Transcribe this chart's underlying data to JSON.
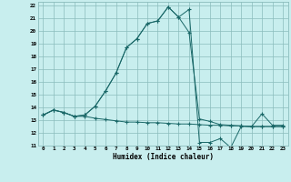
{
  "xlabel": "Humidex (Indice chaleur)",
  "bg_color": "#c8eeee",
  "grid_color": "#8bbcbc",
  "line_color": "#1a6868",
  "xlim": [
    -0.5,
    23.5
  ],
  "ylim": [
    11,
    22.3
  ],
  "xticks": [
    0,
    1,
    2,
    3,
    4,
    5,
    6,
    7,
    8,
    9,
    10,
    11,
    12,
    13,
    14,
    15,
    16,
    17,
    18,
    19,
    20,
    21,
    22,
    23
  ],
  "yticks": [
    11,
    12,
    13,
    14,
    15,
    16,
    17,
    18,
    19,
    20,
    21,
    22
  ],
  "line1_x": [
    0,
    1,
    2,
    3,
    4,
    5,
    6,
    7,
    8,
    9,
    10,
    11,
    12,
    13,
    14,
    15,
    16,
    17,
    18,
    19,
    20,
    21,
    22,
    23
  ],
  "line1_y": [
    13.4,
    13.8,
    13.6,
    13.3,
    13.3,
    13.15,
    13.05,
    12.95,
    12.85,
    12.85,
    12.8,
    12.8,
    12.75,
    12.7,
    12.7,
    12.65,
    12.6,
    12.6,
    12.55,
    12.55,
    12.5,
    12.5,
    12.5,
    12.5
  ],
  "line2_x": [
    0,
    1,
    2,
    3,
    4,
    5,
    6,
    7,
    8,
    9,
    10,
    11,
    12,
    13,
    14,
    15,
    16,
    17,
    18,
    19,
    20,
    21,
    22,
    23
  ],
  "line2_y": [
    13.4,
    13.8,
    13.6,
    13.3,
    13.4,
    14.1,
    15.3,
    16.7,
    18.7,
    19.4,
    20.6,
    20.8,
    21.9,
    21.1,
    21.7,
    11.25,
    11.25,
    11.55,
    10.85,
    12.5,
    12.5,
    13.5,
    12.6,
    12.6
  ],
  "line3_x": [
    0,
    1,
    2,
    3,
    4,
    5,
    6,
    7,
    8,
    9,
    10,
    11,
    12,
    13,
    14,
    15,
    16,
    17,
    18,
    19,
    20,
    21,
    22,
    23
  ],
  "line3_y": [
    13.4,
    13.8,
    13.6,
    13.3,
    13.4,
    14.1,
    15.3,
    16.7,
    18.7,
    19.4,
    20.6,
    20.8,
    21.9,
    21.1,
    19.9,
    13.1,
    12.9,
    12.65,
    12.6,
    12.55,
    12.5,
    12.5,
    12.5,
    12.5
  ]
}
